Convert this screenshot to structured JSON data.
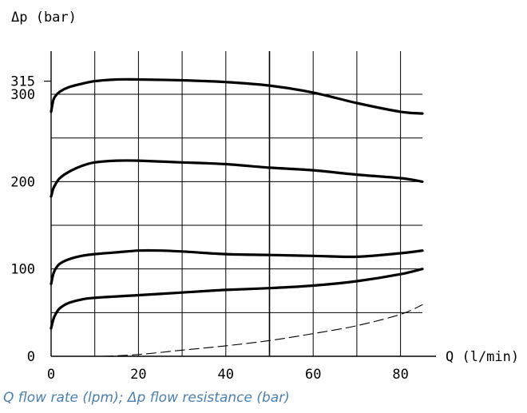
{
  "chart_data": {
    "type": "line",
    "ylabel": "Δp (bar)",
    "xlabel": "Q (l/min)",
    "caption": "Q flow rate (lpm); Δp flow resistance (bar)",
    "xlim": [
      0,
      85
    ],
    "ylim": [
      0,
      350
    ],
    "x_ticks": [
      0,
      20,
      40,
      60,
      80
    ],
    "y_ticks": [
      0,
      100,
      200,
      300,
      315
    ],
    "x_tick_labels": [
      "0",
      "20",
      "40",
      "60",
      "80"
    ],
    "y_tick_labels": [
      "0",
      "100",
      "200",
      "300",
      "315"
    ],
    "grid": true,
    "series": [
      {
        "style": "solid",
        "x": [
          0,
          0.5,
          1,
          2,
          4,
          7,
          10,
          15,
          20,
          30,
          40,
          50,
          60,
          70,
          80,
          85
        ],
        "y": [
          280,
          293,
          298,
          303,
          308,
          312,
          315,
          317,
          317,
          316,
          314,
          310,
          302,
          290,
          280,
          278
        ]
      },
      {
        "style": "solid",
        "x": [
          0,
          0.5,
          1,
          2,
          4,
          7,
          10,
          15,
          20,
          30,
          40,
          50,
          60,
          70,
          80,
          85
        ],
        "y": [
          183,
          192,
          197,
          204,
          211,
          218,
          222,
          224,
          224,
          222,
          220,
          216,
          213,
          208,
          204,
          200
        ]
      },
      {
        "style": "solid",
        "x": [
          0,
          0.5,
          1,
          2,
          4,
          7,
          10,
          15,
          20,
          25,
          30,
          40,
          50,
          60,
          70,
          80,
          85
        ],
        "y": [
          83,
          94,
          100,
          106,
          111,
          115,
          117,
          119,
          121,
          121,
          120,
          117,
          116,
          115,
          114,
          118,
          121
        ]
      },
      {
        "style": "solid",
        "x": [
          0,
          0.5,
          1,
          2,
          4,
          7,
          10,
          20,
          30,
          40,
          50,
          60,
          70,
          80,
          85
        ],
        "y": [
          32,
          42,
          48,
          55,
          61,
          65,
          67,
          70,
          73,
          76,
          78,
          81,
          86,
          94,
          100
        ]
      },
      {
        "style": "dashed",
        "x": [
          12,
          20,
          30,
          40,
          50,
          60,
          70,
          80,
          85
        ],
        "y": [
          0,
          2,
          7,
          12,
          18,
          26,
          35,
          48,
          59
        ]
      }
    ]
  }
}
